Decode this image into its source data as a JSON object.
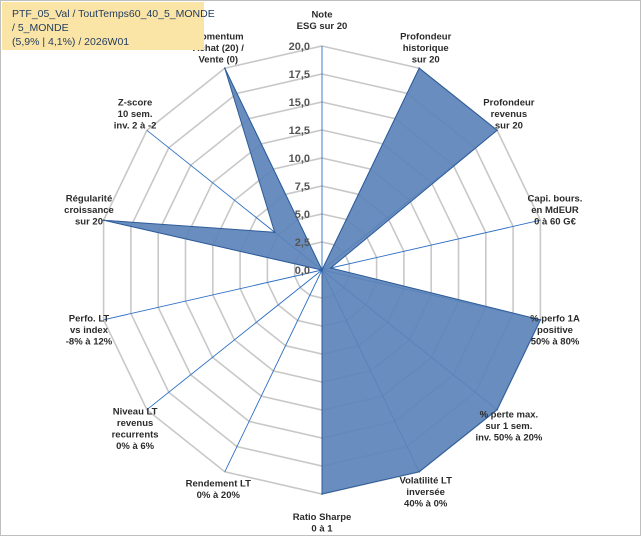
{
  "title": {
    "line1": "PTF_05_Val / ToutTemps60_40_5_MONDE",
    "line2": " / 5_MONDE",
    "line3": "(5,9% | 4,1%) / 2026W01"
  },
  "chart_data": {
    "type": "radar",
    "title": "PTF_05_Val / ToutTemps60_40_5_MONDE / 5_MONDE (5,9% | 4,1%) / 2026W01",
    "rmin": 0,
    "rmax": 20,
    "tick_values": [
      0,
      2.5,
      5,
      7.5,
      10,
      12.5,
      15,
      17.5,
      20
    ],
    "tick_labels": [
      "0,0",
      "2,5",
      "5,0",
      "7,5",
      "10,0",
      "12,5",
      "15,0",
      "17,5",
      "20,0"
    ],
    "categories": [
      [
        "Note",
        "ESG sur 20"
      ],
      [
        "Profondeur",
        "historique",
        "sur 20"
      ],
      [
        "Profondeur",
        "revenus",
        "sur 20"
      ],
      [
        "Capi. bours.",
        "en MdEUR",
        "0 à 60 G€"
      ],
      [
        "% perfo 1A",
        "positive",
        "50% à 80%"
      ],
      [
        "% perte max.",
        "sur 1 sem.",
        "inv. 50% à 20%"
      ],
      [
        "Volatilité LT",
        "inversée",
        "40% à 0%"
      ],
      [
        "Ratio Sharpe",
        "0 à 1"
      ],
      [
        "Rendement LT",
        "0% à 20%"
      ],
      [
        "Niveau LT",
        "revenus",
        "recurrents",
        "0% à 6%"
      ],
      [
        "Perfo. LT",
        "vs index",
        "-8% à 12%"
      ],
      [
        "Régularité",
        "croissance",
        "sur 20"
      ],
      [
        "Z-score",
        "10 sem.",
        "inv. 2 à -2"
      ],
      [
        "Momentum",
        "Achat (20) /",
        "Vente (0)"
      ]
    ],
    "series": [
      {
        "name": "PTF_05_Val",
        "values": [
          0,
          20,
          20,
          0.8,
          20,
          20,
          20,
          20,
          0,
          0,
          0,
          20,
          5.4,
          20
        ],
        "color": "#5b83b8",
        "line_color": "#2e5c99"
      }
    ],
    "grid_color": "#c8c8c8",
    "spoke_color": "#2e6fc4"
  }
}
